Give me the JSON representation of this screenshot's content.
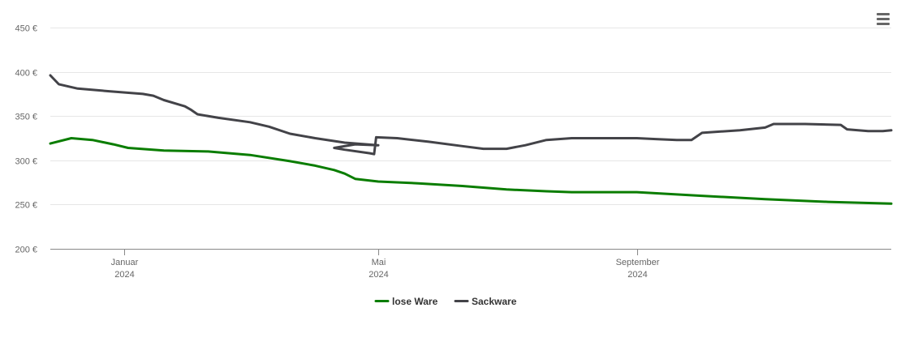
{
  "chart_data": {
    "type": "line",
    "y_axis": {
      "ticks": [
        200,
        250,
        300,
        350,
        400,
        450
      ],
      "tick_labels": [
        "200 €",
        "250 €",
        "300 €",
        "350 €",
        "400 €",
        "450 €"
      ],
      "ylim": [
        200,
        450
      ],
      "grid": true
    },
    "x_axis": {
      "range": [
        "2023-11-27",
        "2024-12-31"
      ],
      "ticks": [
        {
          "date": "2024-01-01",
          "label_line1": "Januar",
          "label_line2": "2024"
        },
        {
          "date": "2024-05-01",
          "label_line1": "Mai",
          "label_line2": "2024"
        },
        {
          "date": "2024-09-01",
          "label_line1": "September",
          "label_line2": "2024"
        }
      ]
    },
    "legend": {
      "position": "bottom-center"
    },
    "series": [
      {
        "name": "lose Ware",
        "color": "#0a7d00",
        "points": [
          [
            "2023-11-27",
            319
          ],
          [
            "2023-12-07",
            325
          ],
          [
            "2023-12-17",
            323
          ],
          [
            "2023-12-27",
            318
          ],
          [
            "2024-01-03",
            314
          ],
          [
            "2024-01-20",
            311
          ],
          [
            "2024-02-10",
            310
          ],
          [
            "2024-03-01",
            306
          ],
          [
            "2024-03-20",
            299
          ],
          [
            "2024-04-01",
            294
          ],
          [
            "2024-04-10",
            289
          ],
          [
            "2024-04-15",
            285
          ],
          [
            "2024-04-20",
            279
          ],
          [
            "2024-05-01",
            276
          ],
          [
            "2024-05-20",
            274
          ],
          [
            "2024-06-10",
            271
          ],
          [
            "2024-07-01",
            267
          ],
          [
            "2024-07-20",
            265
          ],
          [
            "2024-08-01",
            264
          ],
          [
            "2024-09-01",
            264
          ],
          [
            "2024-10-01",
            260
          ],
          [
            "2024-11-01",
            256
          ],
          [
            "2024-12-01",
            253
          ],
          [
            "2024-12-31",
            251
          ]
        ]
      },
      {
        "name": "Sackware",
        "color": "#434348",
        "points": [
          [
            "2023-11-27",
            396
          ],
          [
            "2023-12-01",
            386
          ],
          [
            "2023-12-10",
            381
          ],
          [
            "2023-12-25",
            378
          ],
          [
            "2024-01-10",
            375
          ],
          [
            "2024-01-15",
            373
          ],
          [
            "2024-01-20",
            368
          ],
          [
            "2024-01-30",
            361
          ],
          [
            "2024-02-02",
            357
          ],
          [
            "2024-02-05",
            352
          ],
          [
            "2024-02-15",
            348
          ],
          [
            "2024-03-01",
            343
          ],
          [
            "2024-03-10",
            338
          ],
          [
            "2024-03-20",
            330
          ],
          [
            "2024-04-01",
            325
          ],
          [
            "2024-04-15",
            320
          ],
          [
            "2024-05-01",
            317
          ],
          [
            "2024-04-20",
            318
          ],
          [
            "2024-04-10",
            314
          ],
          [
            "2024-04-15",
            312
          ],
          [
            "2024-04-27",
            308
          ],
          [
            "2024-04-29",
            307
          ],
          [
            "2024-04-30",
            326
          ],
          [
            "2024-05-10",
            325
          ],
          [
            "2024-05-25",
            321
          ],
          [
            "2024-06-10",
            316
          ],
          [
            "2024-06-20",
            313
          ],
          [
            "2024-07-01",
            313
          ],
          [
            "2024-07-10",
            317
          ],
          [
            "2024-07-20",
            323
          ],
          [
            "2024-08-01",
            325
          ],
          [
            "2024-09-01",
            325
          ],
          [
            "2024-09-10",
            324
          ],
          [
            "2024-09-20",
            323
          ],
          [
            "2024-09-27",
            323
          ],
          [
            "2024-10-02",
            331
          ],
          [
            "2024-10-20",
            334
          ],
          [
            "2024-11-01",
            337
          ],
          [
            "2024-11-05",
            341
          ],
          [
            "2024-11-20",
            341
          ],
          [
            "2024-12-07",
            340
          ],
          [
            "2024-12-10",
            335
          ],
          [
            "2024-12-20",
            333
          ],
          [
            "2024-12-27",
            333
          ],
          [
            "2024-12-31",
            334
          ]
        ]
      }
    ]
  }
}
